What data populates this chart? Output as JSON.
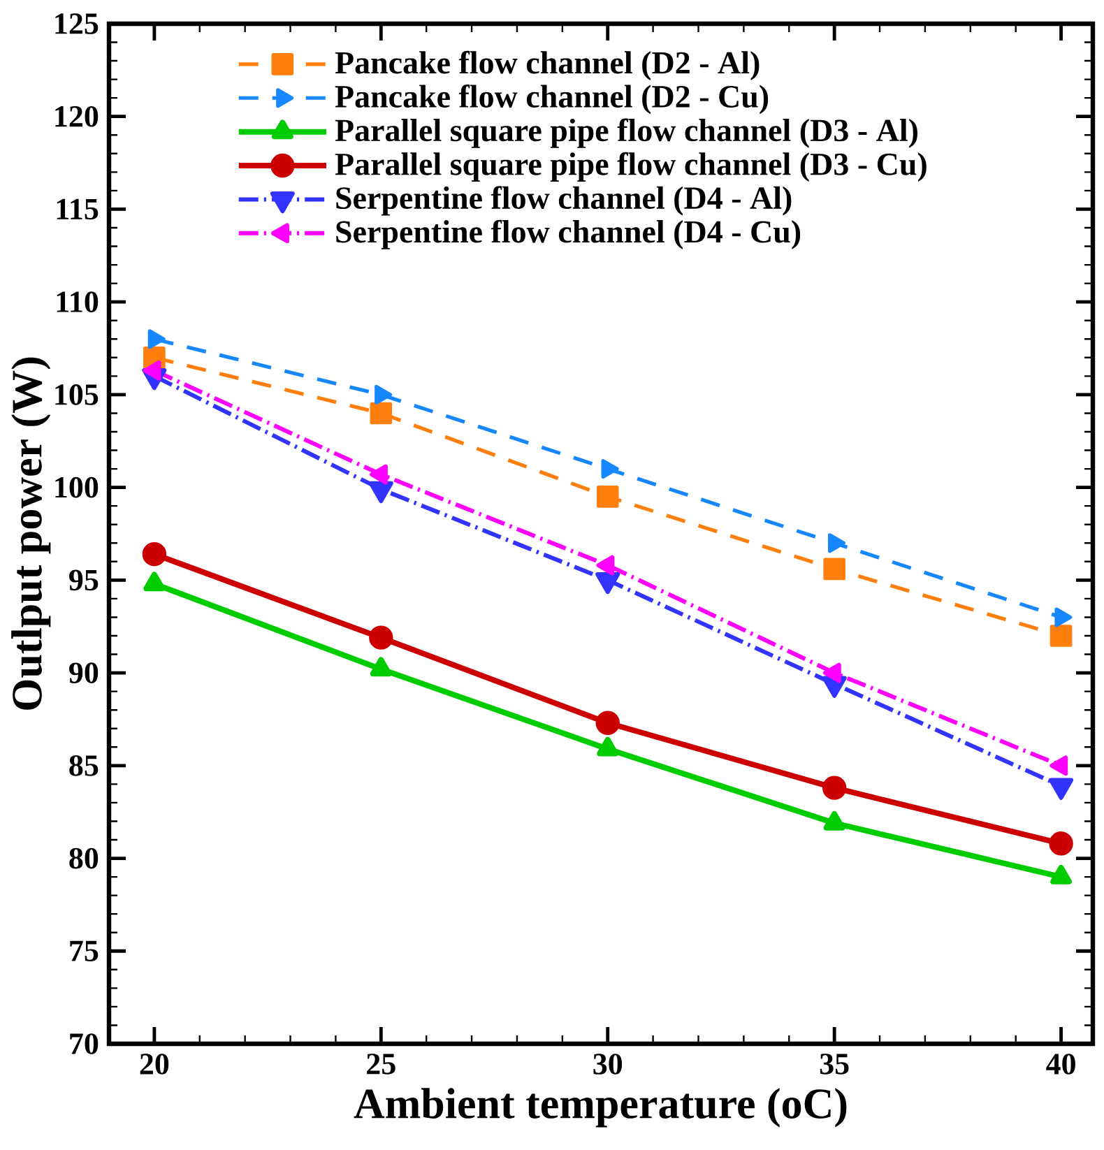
{
  "chart_data": {
    "type": "line",
    "xlabel": "Ambient temperature (oC)",
    "ylabel": "Outlput power (W)",
    "x": [
      20,
      25,
      30,
      35,
      40
    ],
    "xlim": [
      19,
      40.7
    ],
    "ylim": [
      70,
      125
    ],
    "xticks": [
      20,
      25,
      30,
      35,
      40
    ],
    "yticks": [
      70,
      75,
      80,
      85,
      90,
      95,
      100,
      105,
      110,
      115,
      120,
      125
    ],
    "legend": "top",
    "grid": false,
    "series": [
      {
        "name": "Pancake flow channel (D2 - Al)",
        "color": "#ff7f0e",
        "marker": "square",
        "line_style": "dashed",
        "values": [
          107,
          104,
          99.5,
          95.6,
          92
        ]
      },
      {
        "name": "Pancake flow channel (D2 - Cu)",
        "color": "#1787ff",
        "marker": "triangle-right",
        "line_style": "dashed",
        "values": [
          108,
          105,
          101,
          97,
          93
        ]
      },
      {
        "name": "Parallel square pipe flow channel (D3 - Al)",
        "color": "#00cc00",
        "marker": "triangle",
        "line_style": "solid",
        "values": [
          94.8,
          90.2,
          85.9,
          81.9,
          79
        ]
      },
      {
        "name": "Parallel square pipe flow channel (D3 - Cu)",
        "color": "#cc0000",
        "marker": "circle",
        "line_style": "solid",
        "values": [
          96.4,
          91.9,
          87.3,
          83.8,
          80.8
        ]
      },
      {
        "name": "Serpentine flow channel (D4 - Al)",
        "color": "#3333ff",
        "marker": "triangle-down",
        "line_style": "dashdot",
        "values": [
          106,
          99.9,
          95,
          89.4,
          83.9
        ]
      },
      {
        "name": "Serpentine flow channel (D4 - Cu)",
        "color": "#ff00ff",
        "marker": "triangle-left",
        "line_style": "dashdot",
        "values": [
          106.3,
          100.7,
          95.8,
          90,
          85
        ]
      }
    ]
  }
}
